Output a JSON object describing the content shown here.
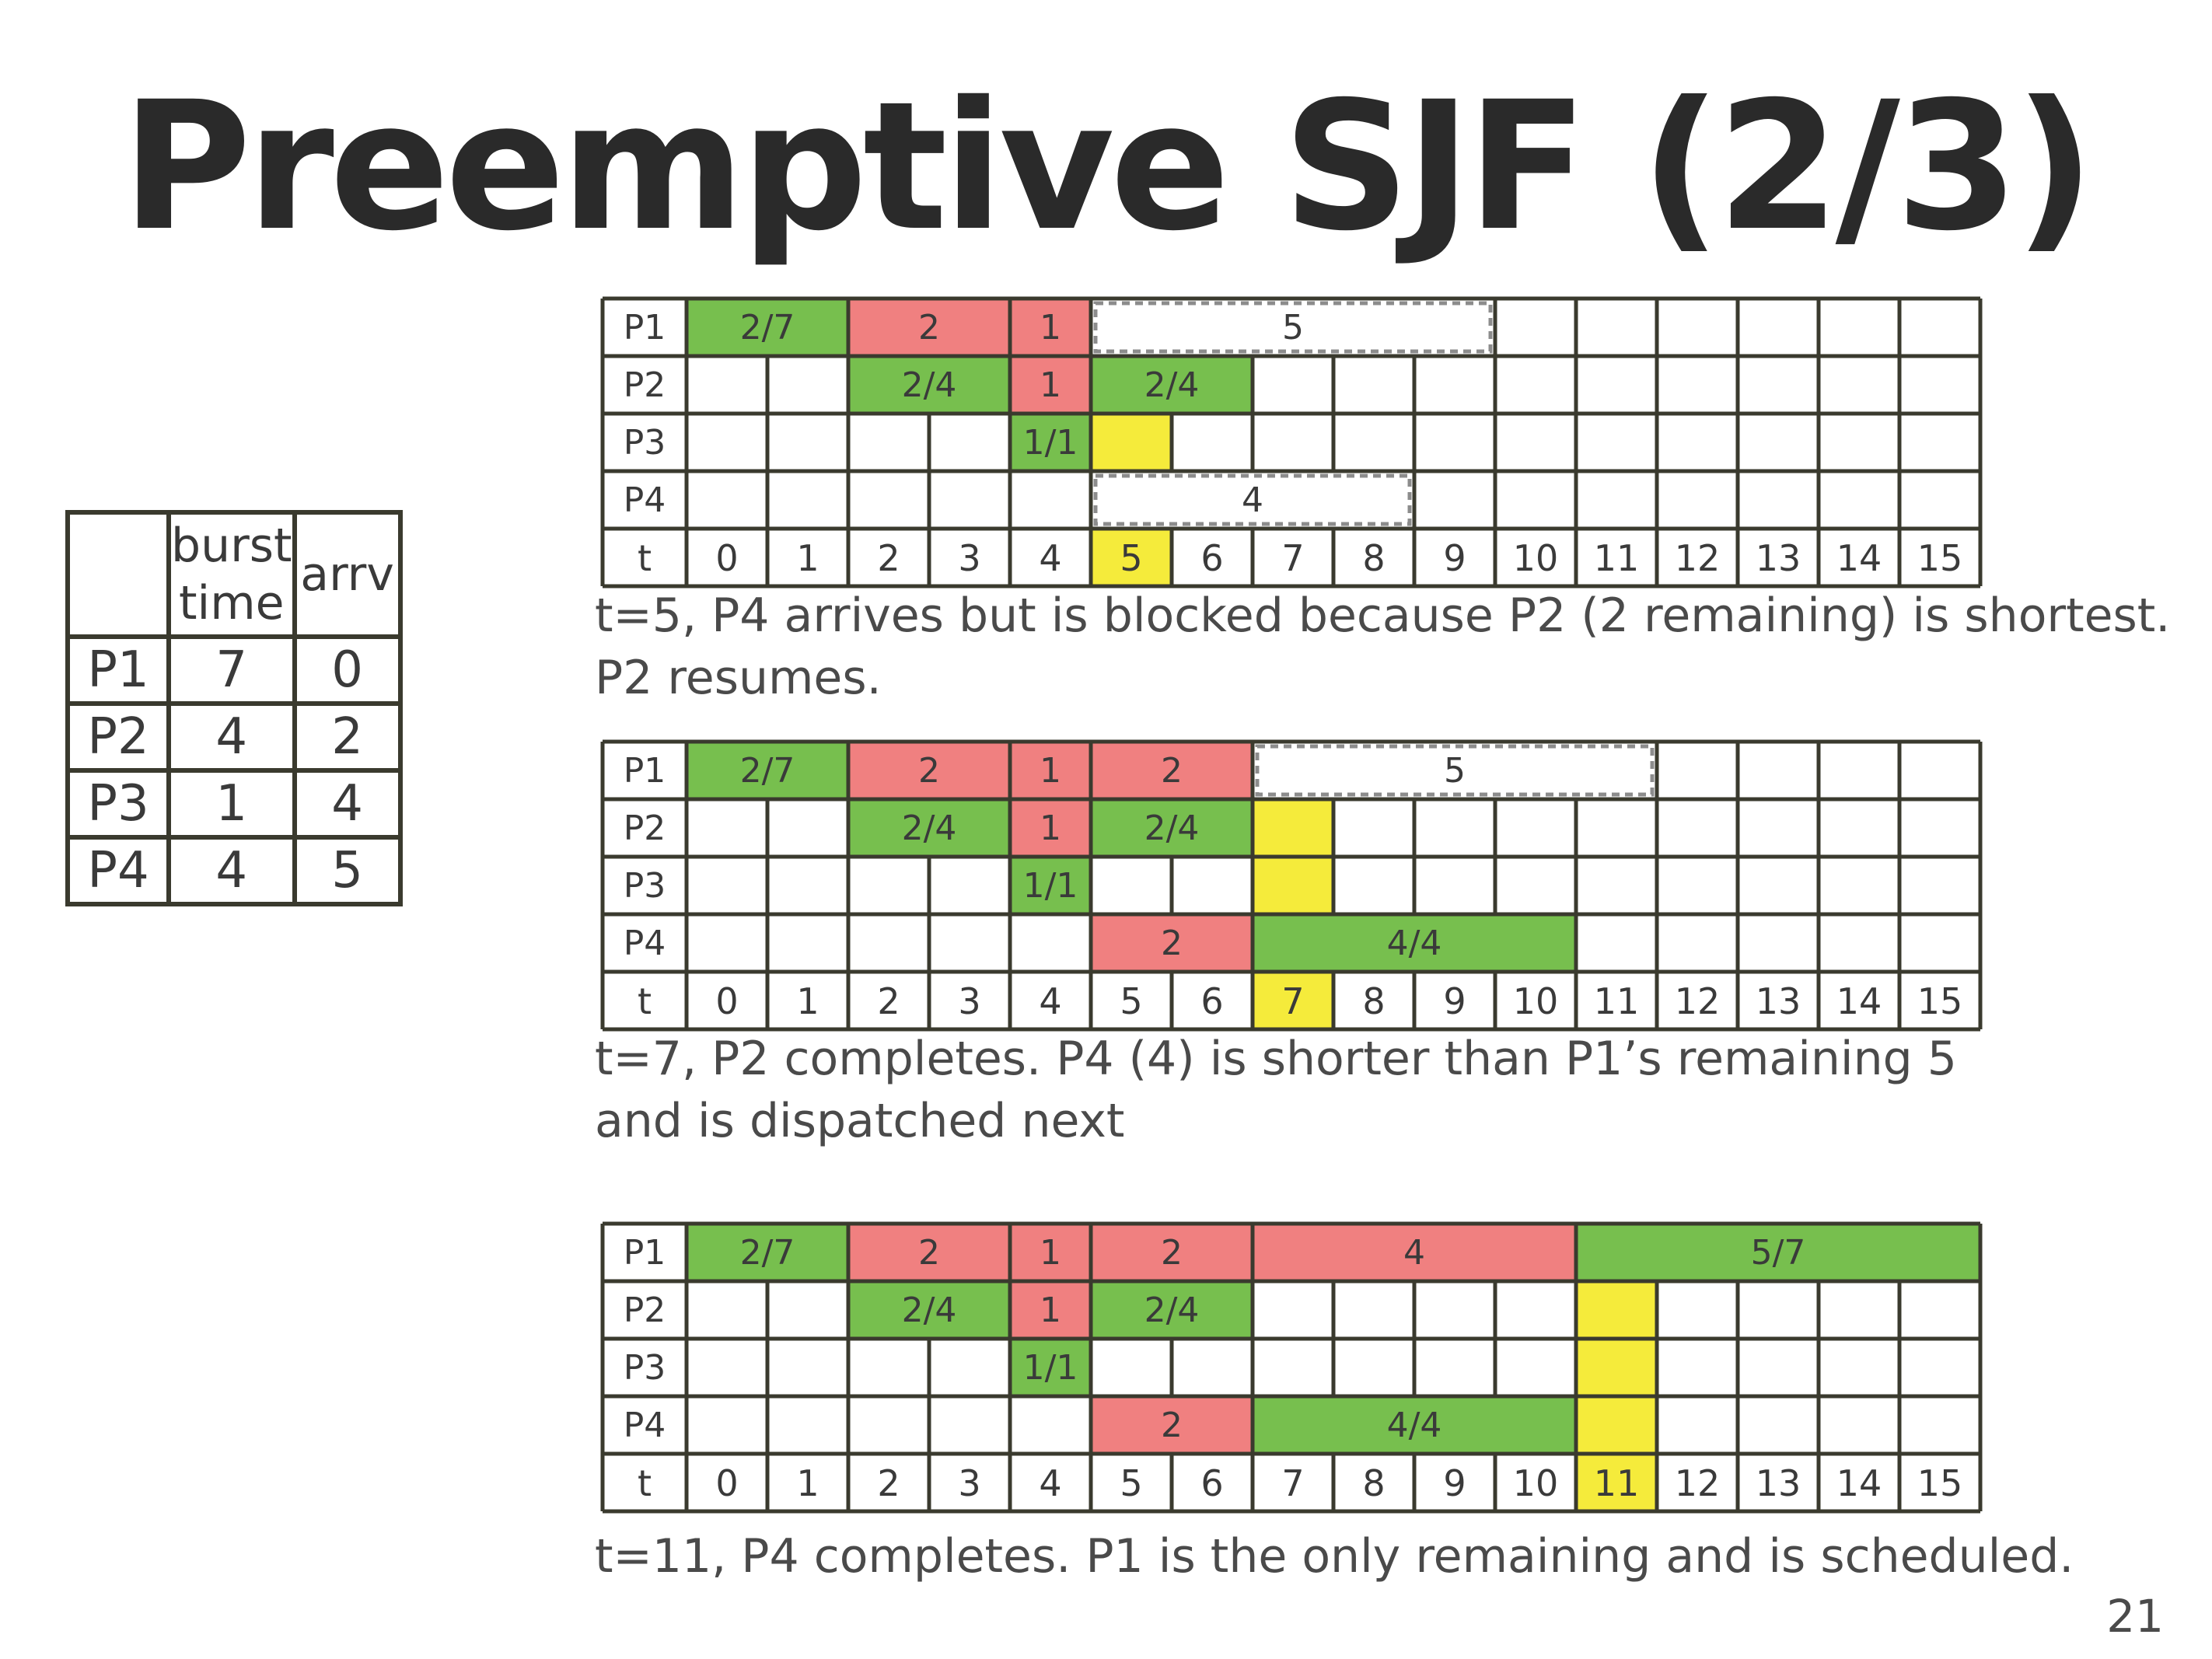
{
  "title": "Preemptive SJF (2/3)",
  "page_number": "21",
  "process_table": {
    "headers": [
      "",
      "burst\ntime",
      "arrv"
    ],
    "header_burst_line1": "burst",
    "header_burst_line2": "time",
    "header_arrv": "arrv",
    "rows": [
      {
        "name": "P1",
        "burst": "7",
        "arrv": "0"
      },
      {
        "name": "P2",
        "burst": "4",
        "arrv": "2"
      },
      {
        "name": "P3",
        "burst": "1",
        "arrv": "4"
      },
      {
        "name": "P4",
        "burst": "4",
        "arrv": "5"
      }
    ]
  },
  "colors": {
    "green": "#77bf4e",
    "red": "#f08080",
    "yellow": "#f5eb3b",
    "grid": "#3a3a2e",
    "dashed": "#8c8c8c"
  },
  "grids": [
    {
      "caption_lines": [
        "t=5, P4 arrives but is blocked because P2 (2 remaining) is shortest.",
        "P2 resumes."
      ],
      "rows": [
        "P1",
        "P2",
        "P3",
        "P4"
      ],
      "time_label": "t",
      "ticks": [
        "0",
        "1",
        "2",
        "3",
        "4",
        "5",
        "6",
        "7",
        "8",
        "9",
        "10",
        "11",
        "12",
        "13",
        "14",
        "15"
      ],
      "highlight_tick": 5,
      "blocks": [
        {
          "row": 0,
          "start": 0,
          "end": 2,
          "label": "2/7",
          "color": "green"
        },
        {
          "row": 0,
          "start": 2,
          "end": 4,
          "label": "2",
          "color": "red"
        },
        {
          "row": 0,
          "start": 4,
          "end": 5,
          "label": "1",
          "color": "red"
        },
        {
          "row": 0,
          "start": 5,
          "end": 10,
          "label": "5",
          "color": "dashed"
        },
        {
          "row": 1,
          "start": 2,
          "end": 4,
          "label": "2/4",
          "color": "green"
        },
        {
          "row": 1,
          "start": 4,
          "end": 5,
          "label": "1",
          "color": "red"
        },
        {
          "row": 1,
          "start": 5,
          "end": 7,
          "label": "2/4",
          "color": "green"
        },
        {
          "row": 2,
          "start": 4,
          "end": 5,
          "label": "1/1",
          "color": "green"
        },
        {
          "row": 2,
          "start": 5,
          "end": 6,
          "label": "",
          "color": "yellow"
        },
        {
          "row": 3,
          "start": 5,
          "end": 9,
          "label": "4",
          "color": "dashed"
        }
      ]
    },
    {
      "caption_lines": [
        "t=7, P2 completes.  P4 (4) is shorter than P1’s remaining 5",
        "and is dispatched next"
      ],
      "rows": [
        "P1",
        "P2",
        "P3",
        "P4"
      ],
      "time_label": "t",
      "ticks": [
        "0",
        "1",
        "2",
        "3",
        "4",
        "5",
        "6",
        "7",
        "8",
        "9",
        "10",
        "11",
        "12",
        "13",
        "14",
        "15"
      ],
      "highlight_tick": 7,
      "blocks": [
        {
          "row": 0,
          "start": 0,
          "end": 2,
          "label": "2/7",
          "color": "green"
        },
        {
          "row": 0,
          "start": 2,
          "end": 4,
          "label": "2",
          "color": "red"
        },
        {
          "row": 0,
          "start": 4,
          "end": 5,
          "label": "1",
          "color": "red"
        },
        {
          "row": 0,
          "start": 5,
          "end": 7,
          "label": "2",
          "color": "red"
        },
        {
          "row": 0,
          "start": 7,
          "end": 12,
          "label": "5",
          "color": "dashed"
        },
        {
          "row": 1,
          "start": 2,
          "end": 4,
          "label": "2/4",
          "color": "green"
        },
        {
          "row": 1,
          "start": 4,
          "end": 5,
          "label": "1",
          "color": "red"
        },
        {
          "row": 1,
          "start": 5,
          "end": 7,
          "label": "2/4",
          "color": "green"
        },
        {
          "row": 1,
          "start": 7,
          "end": 8,
          "label": "",
          "color": "yellow"
        },
        {
          "row": 2,
          "start": 4,
          "end": 5,
          "label": "1/1",
          "color": "green"
        },
        {
          "row": 2,
          "start": 7,
          "end": 8,
          "label": "",
          "color": "yellow"
        },
        {
          "row": 3,
          "start": 5,
          "end": 7,
          "label": "2",
          "color": "red"
        },
        {
          "row": 3,
          "start": 7,
          "end": 11,
          "label": "4/4",
          "color": "green"
        }
      ]
    },
    {
      "caption_lines": [
        "t=11, P4 completes.  P1 is the only remaining and is scheduled."
      ],
      "rows": [
        "P1",
        "P2",
        "P3",
        "P4"
      ],
      "time_label": "t",
      "ticks": [
        "0",
        "1",
        "2",
        "3",
        "4",
        "5",
        "6",
        "7",
        "8",
        "9",
        "10",
        "11",
        "12",
        "13",
        "14",
        "15"
      ],
      "highlight_tick": 11,
      "blocks": [
        {
          "row": 0,
          "start": 0,
          "end": 2,
          "label": "2/7",
          "color": "green"
        },
        {
          "row": 0,
          "start": 2,
          "end": 4,
          "label": "2",
          "color": "red"
        },
        {
          "row": 0,
          "start": 4,
          "end": 5,
          "label": "1",
          "color": "red"
        },
        {
          "row": 0,
          "start": 5,
          "end": 7,
          "label": "2",
          "color": "red"
        },
        {
          "row": 0,
          "start": 7,
          "end": 11,
          "label": "4",
          "color": "red"
        },
        {
          "row": 0,
          "start": 11,
          "end": 16,
          "label": "5/7",
          "color": "green"
        },
        {
          "row": 1,
          "start": 2,
          "end": 4,
          "label": "2/4",
          "color": "green"
        },
        {
          "row": 1,
          "start": 4,
          "end": 5,
          "label": "1",
          "color": "red"
        },
        {
          "row": 1,
          "start": 5,
          "end": 7,
          "label": "2/4",
          "color": "green"
        },
        {
          "row": 1,
          "start": 11,
          "end": 12,
          "label": "",
          "color": "yellow"
        },
        {
          "row": 2,
          "start": 4,
          "end": 5,
          "label": "1/1",
          "color": "green"
        },
        {
          "row": 2,
          "start": 11,
          "end": 12,
          "label": "",
          "color": "yellow"
        },
        {
          "row": 3,
          "start": 5,
          "end": 7,
          "label": "2",
          "color": "red"
        },
        {
          "row": 3,
          "start": 7,
          "end": 11,
          "label": "4/4",
          "color": "green"
        },
        {
          "row": 3,
          "start": 11,
          "end": 12,
          "label": "",
          "color": "yellow"
        }
      ]
    }
  ]
}
